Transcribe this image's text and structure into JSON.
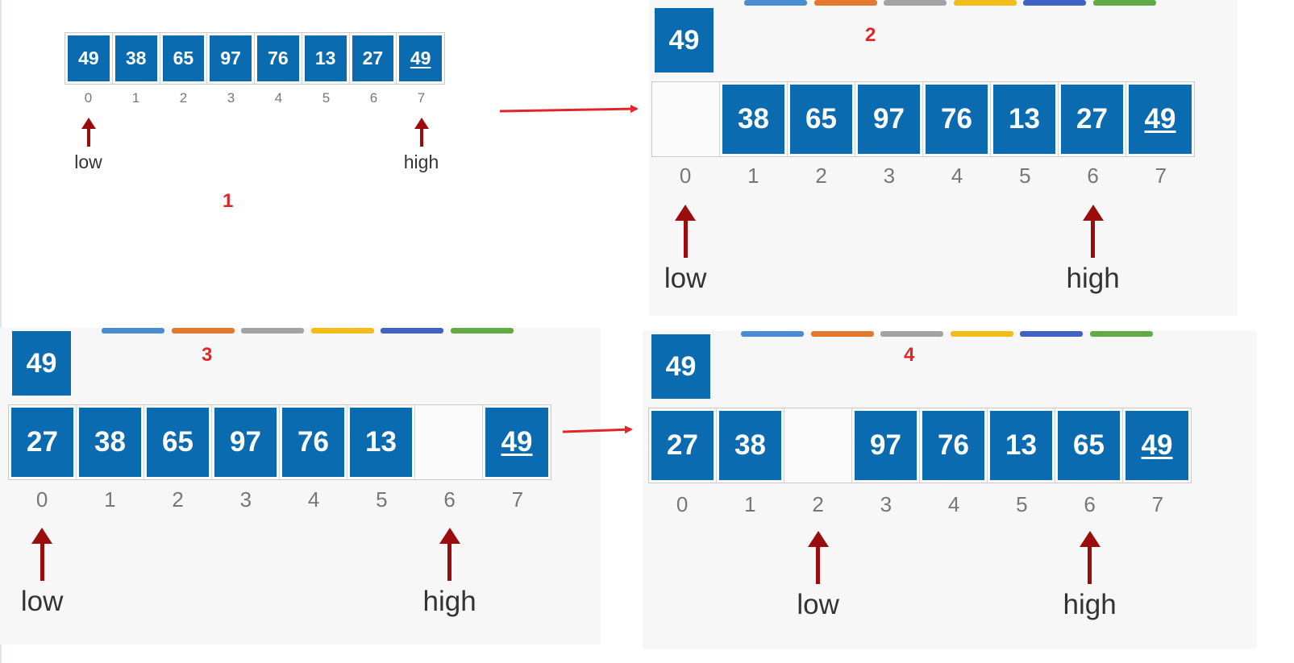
{
  "colors": {
    "cell_fill": "#0a6bb1",
    "arrow": "#9b0d0d",
    "step_label": "#e0262a",
    "connector": "#e0262a",
    "color_tabs": [
      "#4a8cd2",
      "#e2792f",
      "#a3a3a3",
      "#f2bc1b",
      "#3e63c3",
      "#62ab44"
    ]
  },
  "panels": [
    {
      "step": "1",
      "pivot": null,
      "cells": [
        {
          "value": "49",
          "underline": false
        },
        {
          "value": "38",
          "underline": false
        },
        {
          "value": "65",
          "underline": false
        },
        {
          "value": "97",
          "underline": false
        },
        {
          "value": "76",
          "underline": false
        },
        {
          "value": "13",
          "underline": false
        },
        {
          "value": "27",
          "underline": false
        },
        {
          "value": "49",
          "underline": true
        }
      ],
      "indices": [
        "0",
        "1",
        "2",
        "3",
        "4",
        "5",
        "6",
        "7"
      ],
      "low": {
        "label": "low",
        "index": 0
      },
      "high": {
        "label": "high",
        "index": 7
      }
    },
    {
      "step": "2",
      "pivot": "49",
      "cells": [
        {
          "value": "",
          "underline": false
        },
        {
          "value": "38",
          "underline": false
        },
        {
          "value": "65",
          "underline": false
        },
        {
          "value": "97",
          "underline": false
        },
        {
          "value": "76",
          "underline": false
        },
        {
          "value": "13",
          "underline": false
        },
        {
          "value": "27",
          "underline": false
        },
        {
          "value": "49",
          "underline": true
        }
      ],
      "indices": [
        "0",
        "1",
        "2",
        "3",
        "4",
        "5",
        "6",
        "7"
      ],
      "low": {
        "label": "low",
        "index": 0
      },
      "high": {
        "label": "high",
        "index": 6
      }
    },
    {
      "step": "3",
      "pivot": "49",
      "cells": [
        {
          "value": "27",
          "underline": false
        },
        {
          "value": "38",
          "underline": false
        },
        {
          "value": "65",
          "underline": false
        },
        {
          "value": "97",
          "underline": false
        },
        {
          "value": "76",
          "underline": false
        },
        {
          "value": "13",
          "underline": false
        },
        {
          "value": "",
          "underline": false
        },
        {
          "value": "49",
          "underline": true
        }
      ],
      "indices": [
        "0",
        "1",
        "2",
        "3",
        "4",
        "5",
        "6",
        "7"
      ],
      "low": {
        "label": "low",
        "index": 0
      },
      "high": {
        "label": "high",
        "index": 6
      }
    },
    {
      "step": "4",
      "pivot": "49",
      "cells": [
        {
          "value": "27",
          "underline": false
        },
        {
          "value": "38",
          "underline": false
        },
        {
          "value": "",
          "underline": false
        },
        {
          "value": "97",
          "underline": false
        },
        {
          "value": "76",
          "underline": false
        },
        {
          "value": "13",
          "underline": false
        },
        {
          "value": "65",
          "underline": false
        },
        {
          "value": "49",
          "underline": true
        }
      ],
      "indices": [
        "0",
        "1",
        "2",
        "3",
        "4",
        "5",
        "6",
        "7"
      ],
      "low": {
        "label": "low",
        "index": 2
      },
      "high": {
        "label": "high",
        "index": 6
      }
    }
  ]
}
